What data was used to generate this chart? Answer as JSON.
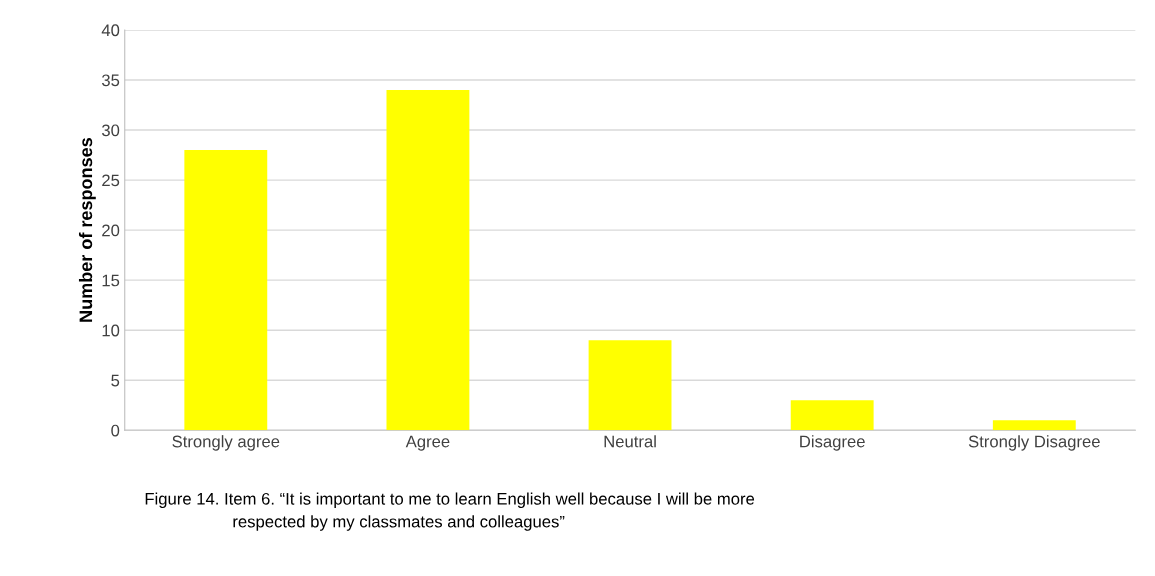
{
  "chart_data": {
    "type": "bar",
    "ylabel": "Number of responses",
    "categories": [
      "Strongly agree",
      "Agree",
      "Neutral",
      "Disagree",
      "Strongly Disagree"
    ],
    "values": [
      28,
      34,
      9,
      3,
      1
    ],
    "color": "#ffff00",
    "ylim": [
      0,
      40
    ],
    "yticks": [
      0,
      5,
      10,
      15,
      20,
      25,
      30,
      35,
      40
    ],
    "grid": "y",
    "legend": false,
    "annotations": [
      "Figure 14. Item 6. “It is important to me to learn English well because I will be more\n                   respected by my classmates and colleagues”"
    ]
  }
}
